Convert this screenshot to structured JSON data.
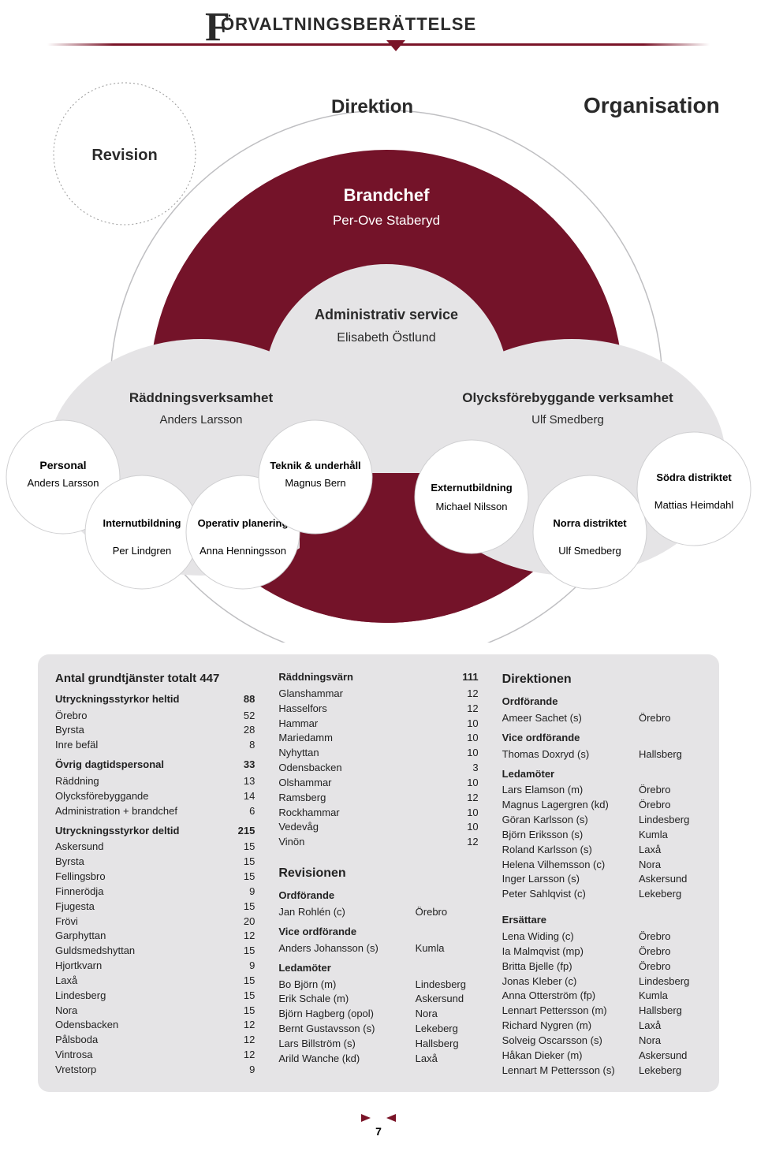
{
  "header": {
    "title": "ÖRVALTNINGSBERÄTTELSE",
    "big_f": "F"
  },
  "diagram": {
    "colors": {
      "maroon": "#741329",
      "grey": "#e5e4e6",
      "text_dark": "#2a2a2a",
      "text_white": "#ffffff",
      "dotted": "#999999"
    },
    "direction_label": "Direktion",
    "organisation_label": "Organisation",
    "revision": {
      "label": "Revision"
    },
    "brandchef": {
      "label": "Brandchef",
      "name": "Per-Ove Staberyd"
    },
    "admin": {
      "label": "Administrativ service",
      "name": "Elisabeth Östlund"
    },
    "raddning": {
      "label": "Räddningsverksamhet",
      "name": "Anders Larsson"
    },
    "olycks": {
      "label": "Olycksförebyggande verksamhet",
      "name": "Ulf Smedberg"
    },
    "personal": {
      "label": "Personal",
      "name": "Anders Larsson"
    },
    "intern": {
      "label": "Internutbildning",
      "name": "Per Lindgren"
    },
    "operativ": {
      "label": "Operativ planering",
      "name": "Anna Henningsson"
    },
    "teknik": {
      "label": "Teknik & underhåll",
      "name": "Magnus Bern"
    },
    "extern": {
      "label": "Externutbildning",
      "name": "Michael Nilsson"
    },
    "norra": {
      "label": "Norra distriktet",
      "name": "Ulf Smedberg"
    },
    "sodra": {
      "label": "Södra distriktet",
      "name": "Mattias Heimdahl"
    }
  },
  "tables": {
    "grund_title": "Antal grundtjänster totalt 447",
    "heltid_title": "Utryckningsstyrkor heltid",
    "heltid_total": "88",
    "heltid": [
      {
        "l": "Örebro",
        "v": "52"
      },
      {
        "l": "Byrsta",
        "v": "28"
      },
      {
        "l": "Inre befäl",
        "v": "8"
      }
    ],
    "ovrig_title": "Övrig dagtidspersonal",
    "ovrig_total": "33",
    "ovrig": [
      {
        "l": "Räddning",
        "v": "13"
      },
      {
        "l": "Olycksförebyggande",
        "v": "14"
      },
      {
        "l": "Administration + brandchef",
        "v": "6"
      }
    ],
    "deltid_title": "Utryckningsstyrkor deltid",
    "deltid_total": "215",
    "deltid": [
      {
        "l": "Askersund",
        "v": "15"
      },
      {
        "l": "Byrsta",
        "v": "15"
      },
      {
        "l": "Fellingsbro",
        "v": "15"
      },
      {
        "l": "Finnerödja",
        "v": "9"
      },
      {
        "l": "Fjugesta",
        "v": "15"
      },
      {
        "l": "Frövi",
        "v": "20"
      },
      {
        "l": "Garphyttan",
        "v": "12"
      },
      {
        "l": "Guldsmedshyttan",
        "v": "15"
      },
      {
        "l": "Hjortkvarn",
        "v": "9"
      },
      {
        "l": "Laxå",
        "v": "15"
      },
      {
        "l": "Lindesberg",
        "v": "15"
      },
      {
        "l": "Nora",
        "v": "15"
      },
      {
        "l": "Odensbacken",
        "v": "12"
      },
      {
        "l": "Pålsboda",
        "v": "12"
      },
      {
        "l": "Vintrosa",
        "v": "12"
      },
      {
        "l": "Vretstorp",
        "v": "9"
      }
    ],
    "raddvarn_title": "Räddningsvärn",
    "raddvarn_total": "111",
    "raddvarn": [
      {
        "l": "Glanshammar",
        "v": "12"
      },
      {
        "l": "Hasselfors",
        "v": "12"
      },
      {
        "l": "Hammar",
        "v": "10"
      },
      {
        "l": "Mariedamm",
        "v": "10"
      },
      {
        "l": "Nyhyttan",
        "v": "10"
      },
      {
        "l": "Odensbacken",
        "v": "3"
      },
      {
        "l": "Olshammar",
        "v": "10"
      },
      {
        "l": "Ramsberg",
        "v": "12"
      },
      {
        "l": "Rockhammar",
        "v": "10"
      },
      {
        "l": "Vedevåg",
        "v": "10"
      },
      {
        "l": "Vinön",
        "v": "12"
      }
    ],
    "revision_title": "Revisionen",
    "rev_ordf_label": "Ordförande",
    "rev_ordf": [
      {
        "l": "Jan Rohlén (c)",
        "v": "Örebro"
      }
    ],
    "rev_vice_label": "Vice ordförande",
    "rev_vice": [
      {
        "l": "Anders Johansson (s)",
        "v": "Kumla"
      }
    ],
    "rev_led_label": "Ledamöter",
    "rev_led": [
      {
        "l": "Bo Björn (m)",
        "v": "Lindesberg"
      },
      {
        "l": "Erik Schale (m)",
        "v": "Askersund"
      },
      {
        "l": "Björn Hagberg (opol)",
        "v": "Nora"
      },
      {
        "l": "Bernt Gustavsson (s)",
        "v": "Lekeberg"
      },
      {
        "l": "Lars Billström (s)",
        "v": "Hallsberg"
      },
      {
        "l": "Arild Wanche (kd)",
        "v": "Laxå"
      }
    ],
    "direktionen_title": "Direktionen",
    "dir_ordf_label": "Ordförande",
    "dir_ordf": [
      {
        "l": "Ameer Sachet (s)",
        "v": "Örebro"
      }
    ],
    "dir_vice_label": "Vice ordförande",
    "dir_vice": [
      {
        "l": "Thomas Doxryd (s)",
        "v": "Hallsberg"
      }
    ],
    "dir_led_label": "Ledamöter",
    "dir_led": [
      {
        "l": "Lars Elamson (m)",
        "v": "Örebro"
      },
      {
        "l": "Magnus Lagergren (kd)",
        "v": "Örebro"
      },
      {
        "l": "Göran Karlsson (s)",
        "v": "Lindesberg"
      },
      {
        "l": "Björn Eriksson (s)",
        "v": "Kumla"
      },
      {
        "l": "Roland Karlsson (s)",
        "v": "Laxå"
      },
      {
        "l": "Helena Vilhemsson (c)",
        "v": "Nora"
      },
      {
        "l": "Inger Larsson (s)",
        "v": "Askersund"
      },
      {
        "l": "Peter Sahlqvist (c)",
        "v": "Lekeberg"
      }
    ],
    "dir_ers_label": "Ersättare",
    "dir_ers": [
      {
        "l": "Lena Widing (c)",
        "v": "Örebro"
      },
      {
        "l": "Ia Malmqvist (mp)",
        "v": "Örebro"
      },
      {
        "l": "Britta Bjelle (fp)",
        "v": "Örebro"
      },
      {
        "l": "Jonas Kleber (c)",
        "v": "Lindesberg"
      },
      {
        "l": "Anna Otterström (fp)",
        "v": "Kumla"
      },
      {
        "l": "Lennart Pettersson (m)",
        "v": "Hallsberg"
      },
      {
        "l": "Richard Nygren (m)",
        "v": "Laxå"
      },
      {
        "l": "Solveig Oscarsson (s)",
        "v": "Nora"
      },
      {
        "l": "Håkan Dieker (m)",
        "v": "Askersund"
      },
      {
        "l": "Lennart M Pettersson (s)",
        "v": "Lekeberg"
      }
    ]
  },
  "footer": {
    "page": "7"
  }
}
